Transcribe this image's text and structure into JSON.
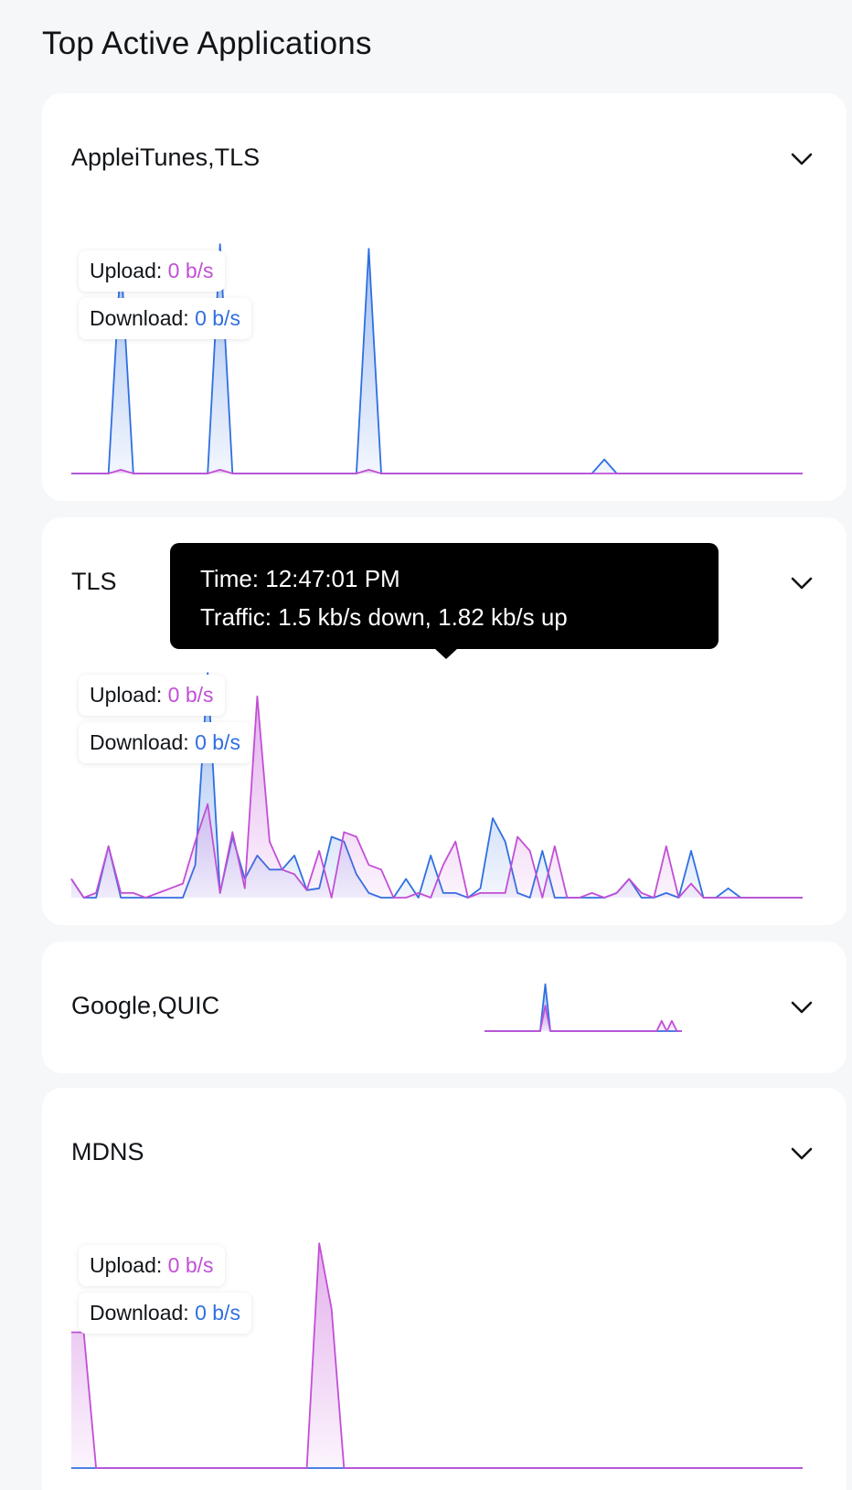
{
  "page": {
    "title": "Top Active Applications"
  },
  "colors": {
    "upload": "#c24fd6",
    "download": "#2f6fe0",
    "card_bg": "#ffffff",
    "page_bg": "#f6f7f9"
  },
  "legend": {
    "upload_label": "Upload:",
    "download_label": "Download:"
  },
  "cards": [
    {
      "title": "AppleiTunes,TLS",
      "upload_value": "0 b/s",
      "download_value": "0 b/s",
      "chart_data": {
        "type": "area",
        "ylim": [
          0,
          250
        ],
        "series": [
          {
            "key": "download",
            "values": [
              0,
              0,
              0,
              0,
              230,
              0,
              0,
              0,
              0,
              0,
              0,
              0,
              245,
              0,
              0,
              0,
              0,
              0,
              0,
              0,
              0,
              0,
              0,
              0,
              240,
              0,
              0,
              0,
              0,
              0,
              0,
              0,
              0,
              0,
              0,
              0,
              0,
              0,
              0,
              0,
              0,
              0,
              0,
              15,
              0,
              0,
              0,
              0,
              0,
              0,
              0,
              0,
              0,
              0,
              0,
              0,
              0,
              0,
              0,
              0
            ]
          },
          {
            "key": "upload",
            "values": [
              0,
              0,
              0,
              0,
              4,
              0,
              0,
              0,
              0,
              0,
              0,
              0,
              4,
              0,
              0,
              0,
              0,
              0,
              0,
              0,
              0,
              0,
              0,
              0,
              4,
              0,
              0,
              0,
              0,
              0,
              0,
              0,
              0,
              0,
              0,
              0,
              0,
              0,
              0,
              0,
              0,
              0,
              0,
              0,
              0,
              0,
              0,
              0,
              0,
              0,
              0,
              0,
              0,
              0,
              0,
              0,
              0,
              0,
              0,
              0
            ]
          }
        ]
      }
    },
    {
      "title": "TLS",
      "upload_value": "0 b/s",
      "download_value": "0 b/s",
      "tooltip": {
        "time": "Time: 12:47:01 PM",
        "traffic": "Traffic: 1.5 kb/s down, 1.82 kb/s up"
      },
      "chart_data": {
        "type": "area",
        "ylim": [
          0,
          250
        ],
        "series": [
          {
            "key": "download",
            "values": [
              20,
              0,
              0,
              55,
              0,
              0,
              0,
              0,
              0,
              0,
              35,
              240,
              5,
              65,
              20,
              45,
              30,
              30,
              45,
              8,
              10,
              65,
              60,
              25,
              5,
              0,
              0,
              20,
              0,
              45,
              5,
              5,
              0,
              10,
              85,
              60,
              5,
              0,
              50,
              0,
              0,
              0,
              0,
              0,
              5,
              20,
              0,
              0,
              5,
              0,
              50,
              0,
              0,
              10,
              0,
              0,
              0,
              0,
              0,
              0
            ]
          },
          {
            "key": "upload",
            "values": [
              20,
              0,
              5,
              55,
              5,
              5,
              0,
              5,
              10,
              15,
              60,
              100,
              5,
              70,
              10,
              215,
              60,
              30,
              25,
              8,
              50,
              0,
              70,
              65,
              35,
              30,
              0,
              0,
              5,
              0,
              35,
              60,
              0,
              5,
              5,
              5,
              65,
              50,
              0,
              55,
              0,
              0,
              5,
              0,
              5,
              20,
              5,
              0,
              55,
              0,
              15,
              0,
              0,
              0,
              0,
              0,
              0,
              0,
              0,
              0
            ]
          }
        ]
      }
    },
    {
      "title": "Google,QUIC",
      "chart_data": {
        "type": "area",
        "ylim": [
          0,
          60
        ],
        "series": [
          {
            "key": "download",
            "values": [
              0,
              0,
              0,
              0,
              0,
              0,
              0,
              0,
              0,
              0,
              0,
              0,
              55,
              0,
              0,
              0,
              0,
              0,
              0,
              0,
              0,
              0,
              0,
              0,
              0,
              0,
              0,
              0,
              0,
              0,
              0,
              0,
              0,
              0,
              0,
              0,
              0,
              0,
              0,
              0
            ]
          },
          {
            "key": "upload",
            "values": [
              0,
              0,
              0,
              0,
              0,
              0,
              0,
              0,
              0,
              0,
              0,
              0,
              30,
              0,
              0,
              0,
              0,
              0,
              0,
              0,
              0,
              0,
              0,
              0,
              0,
              0,
              0,
              0,
              0,
              0,
              0,
              0,
              0,
              0,
              0,
              12,
              0,
              12,
              0,
              0
            ]
          }
        ]
      }
    },
    {
      "title": "MDNS",
      "upload_value": "0 b/s",
      "download_value": "0 b/s",
      "chart_data": {
        "type": "area",
        "ylim": [
          0,
          250
        ],
        "series": [
          {
            "key": "download",
            "values": [
              0,
              0,
              0,
              0,
              0,
              0,
              0,
              0,
              0,
              0,
              0,
              0,
              0,
              0,
              0,
              0,
              0,
              0,
              0,
              0,
              0,
              0,
              0,
              0,
              0,
              0,
              0,
              0,
              0,
              0,
              0,
              0,
              0,
              0,
              0,
              0,
              0,
              0,
              0,
              0,
              0,
              0,
              0,
              0,
              0,
              0,
              0,
              0,
              0,
              0,
              0,
              0,
              0,
              0,
              0,
              0,
              0,
              0,
              0,
              0
            ]
          },
          {
            "key": "upload",
            "values": [
              145,
              145,
              0,
              0,
              0,
              0,
              0,
              0,
              0,
              0,
              0,
              0,
              0,
              0,
              0,
              0,
              0,
              0,
              0,
              0,
              240,
              170,
              0,
              0,
              0,
              0,
              0,
              0,
              0,
              0,
              0,
              0,
              0,
              0,
              0,
              0,
              0,
              0,
              0,
              0,
              0,
              0,
              0,
              0,
              0,
              0,
              0,
              0,
              0,
              0,
              0,
              0,
              0,
              0,
              0,
              0,
              0,
              0,
              0,
              0
            ]
          }
        ]
      }
    }
  ]
}
